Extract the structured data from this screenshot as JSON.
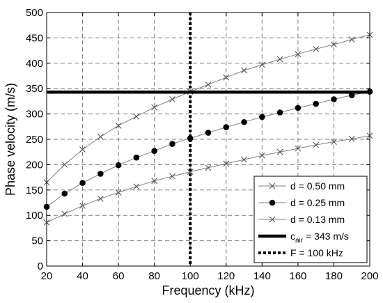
{
  "chart_data": {
    "type": "line",
    "title": "",
    "xlabel": "Frequency (kHz)",
    "ylabel": "Phase velocity (m/s)",
    "xlim": [
      20,
      200
    ],
    "ylim": [
      0,
      500
    ],
    "xticks": [
      20,
      40,
      60,
      80,
      100,
      120,
      140,
      160,
      180,
      200
    ],
    "yticks": [
      0,
      50,
      100,
      150,
      200,
      250,
      300,
      350,
      400,
      450,
      500
    ],
    "grid": true,
    "legend_position": "lower-right",
    "series": [
      {
        "name": "d = 0.50 mm",
        "marker": "x",
        "color": "#808080",
        "x": [
          20,
          30,
          40,
          50,
          60,
          70,
          80,
          90,
          100,
          110,
          120,
          130,
          140,
          150,
          160,
          170,
          180,
          190,
          200
        ],
        "y": [
          165,
          200,
          230,
          255,
          277,
          295,
          313,
          329,
          344,
          358,
          372,
          386,
          397,
          408,
          418,
          428,
          437,
          447,
          456
        ]
      },
      {
        "name": "d = 0.25 mm",
        "marker": "circle",
        "color": "#808080",
        "x": [
          20,
          30,
          40,
          50,
          60,
          70,
          80,
          90,
          100,
          110,
          120,
          130,
          140,
          150,
          160,
          170,
          180,
          190,
          200
        ],
        "y": [
          117,
          143,
          164,
          182,
          199,
          214,
          227,
          241,
          252,
          263,
          274,
          284,
          294,
          303,
          312,
          320,
          329,
          337,
          344
        ]
      },
      {
        "name": "d = 0.13 mm",
        "marker": "x",
        "color": "#808080",
        "x": [
          20,
          30,
          40,
          50,
          60,
          70,
          80,
          90,
          100,
          110,
          120,
          130,
          140,
          150,
          160,
          170,
          180,
          190,
          200
        ],
        "y": [
          86,
          103,
          119,
          133,
          145,
          157,
          168,
          177,
          186,
          194,
          202,
          210,
          218,
          225,
          232,
          239,
          245,
          251,
          257
        ]
      }
    ],
    "reference_lines": [
      {
        "name": "c",
        "name_sub": "air",
        "name_rest": " = 343 m/s",
        "orientation": "horizontal",
        "value": 343,
        "style": "solid"
      },
      {
        "name": "F = 100 kHz",
        "orientation": "vertical",
        "value": 100,
        "style": "dotted"
      }
    ]
  }
}
